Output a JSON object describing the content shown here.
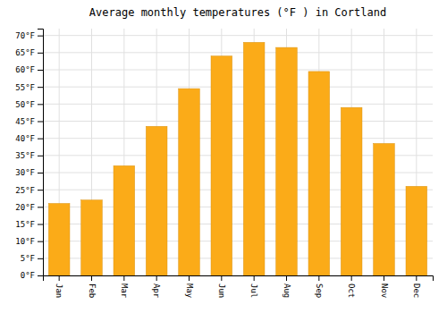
{
  "chart_data": {
    "type": "bar",
    "title": "Average monthly temperatures (°F ) in Cortland",
    "categories": [
      "Jan",
      "Feb",
      "Mar",
      "Apr",
      "May",
      "Jun",
      "Jul",
      "Aug",
      "Sep",
      "Oct",
      "Nov",
      "Dec"
    ],
    "values": [
      21,
      22,
      32,
      43.5,
      54.5,
      64,
      68,
      66.5,
      59.5,
      49,
      38.5,
      26
    ],
    "color": "#FBAB18",
    "ylim": [
      0,
      72
    ],
    "yticks": [
      {
        "value": 0,
        "label": "0°F"
      },
      {
        "value": 5,
        "label": "5°F"
      },
      {
        "value": 10,
        "label": "10°F"
      },
      {
        "value": 15,
        "label": "15°F"
      },
      {
        "value": 20,
        "label": "20°F"
      },
      {
        "value": 25,
        "label": "25°F"
      },
      {
        "value": 30,
        "label": "30°F"
      },
      {
        "value": 35,
        "label": "35°F"
      },
      {
        "value": 40,
        "label": "40°F"
      },
      {
        "value": 45,
        "label": "45°F"
      },
      {
        "value": 50,
        "label": "50°F"
      },
      {
        "value": 55,
        "label": "55°F"
      },
      {
        "value": 60,
        "label": "60°F"
      },
      {
        "value": 65,
        "label": "65°F"
      },
      {
        "value": 70,
        "label": "70°F"
      }
    ],
    "grid": true
  }
}
